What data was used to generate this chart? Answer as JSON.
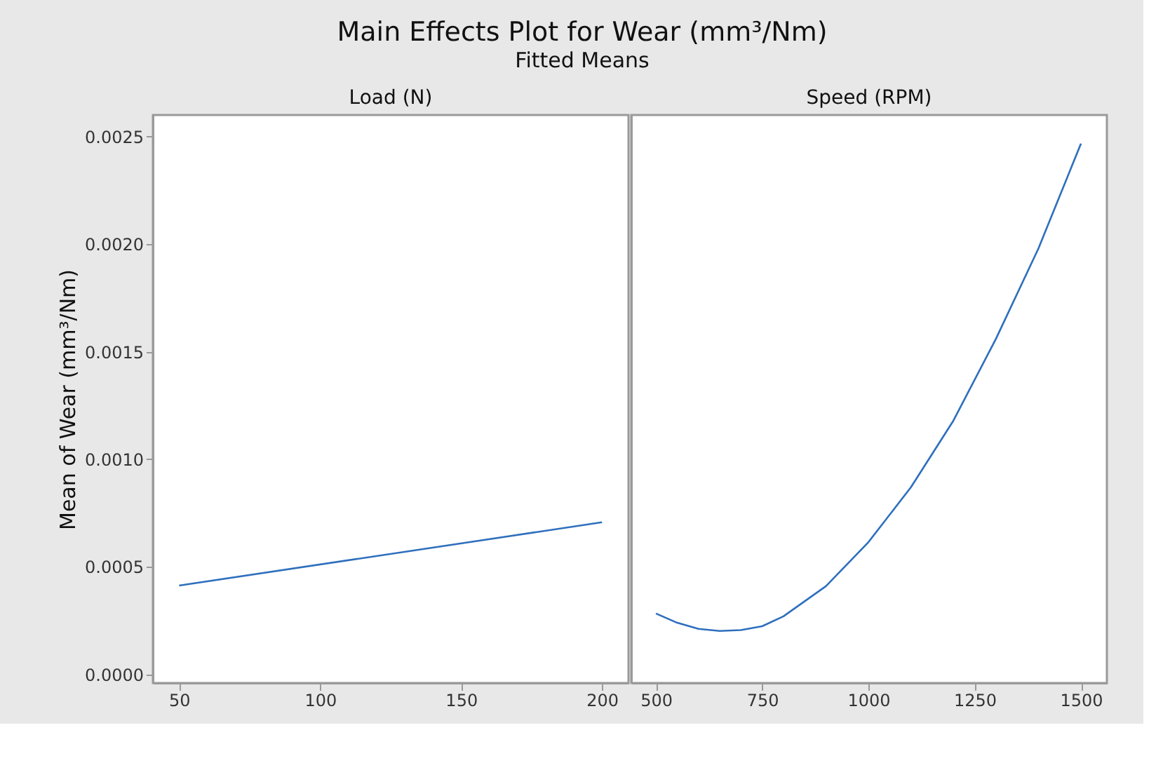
{
  "chart_data": [
    {
      "type": "line",
      "title": "Main Effects Plot for Wear (mm³/Nm)",
      "subtitle": "Fitted Means",
      "xlabel": "Load  (N)",
      "ylabel": "Mean of Wear (mm³/Nm)",
      "x": [
        50,
        200
      ],
      "xlim": [
        40.7,
        209.4
      ],
      "xticks": [
        50,
        100,
        150,
        200
      ],
      "ylim": [
        -4e-05,
        0.0026
      ],
      "yticks": [
        {
          "value": 0,
          "label": "0.0000"
        },
        {
          "value": 0.0005,
          "label": "0.0005"
        },
        {
          "value": 0.001,
          "label": "0.0010"
        },
        {
          "value": 0.0015,
          "label": "0.0015"
        },
        {
          "value": 0.002,
          "label": "0.0020"
        },
        {
          "value": 0.0025,
          "label": "0.0025"
        }
      ],
      "series": [
        {
          "color": "#2e6fbd",
          "values": [
            0.000413,
            0.000707
          ]
        }
      ],
      "grid": false
    },
    {
      "type": "line",
      "xlabel": "Speed (RPM)",
      "x": [
        500,
        550,
        600,
        650,
        700,
        750,
        800,
        900,
        1000,
        1100,
        1200,
        1300,
        1400,
        1500
      ],
      "xlim": [
        442,
        1561
      ],
      "xticks": [
        500,
        750,
        1000,
        1250,
        1500
      ],
      "ylim": [
        -4e-05,
        0.0026
      ],
      "tick_labels": "x",
      "series": [
        {
          "color": "#2e6fbd",
          "values": [
            0.000283,
            0.00024,
            0.000212,
            0.000202,
            0.000206,
            0.000224,
            0.00027,
            0.00041,
            0.000615,
            0.00087,
            0.00118,
            0.00156,
            0.00198,
            0.002467
          ]
        }
      ],
      "grid": false
    }
  ]
}
